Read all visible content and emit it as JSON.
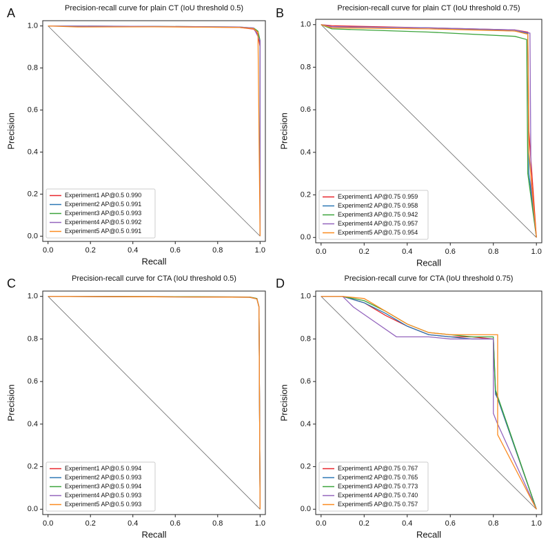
{
  "chart_data": [
    {
      "type": "line",
      "panel": "A",
      "title": "Precision-recall curve for plain CT (IoU threshold 0.5)",
      "x_label": "Recall",
      "y_label": "Precision",
      "xlim": [
        -0.025,
        1.025
      ],
      "ylim": [
        -0.025,
        1.025
      ],
      "xticks": [
        {
          "value": 0,
          "label": "0.0"
        },
        0.2,
        0.4,
        0.6,
        0.8,
        {
          "value": 1,
          "label": "1.0"
        }
      ],
      "yticks": [
        {
          "value": 0,
          "label": "0.0"
        },
        0.2,
        0.4,
        0.6,
        0.8,
        {
          "value": 1,
          "label": "1.0"
        }
      ],
      "legend": "lower left",
      "series": [
        {
          "name": "Experiment1 AP@0.5 0.990",
          "color": "#e8242a",
          "x": [
            0,
            0.5,
            0.9,
            0.97,
            0.99,
            1.0,
            1.0
          ],
          "values": [
            1,
            0.997,
            0.993,
            0.985,
            0.96,
            0.9,
            0
          ]
        },
        {
          "name": "Experiment2 AP@0.5 0.991",
          "color": "#2a77b4",
          "x": [
            0,
            0.5,
            0.9,
            0.97,
            0.99,
            1.0,
            1.0
          ],
          "values": [
            1,
            0.997,
            0.994,
            0.988,
            0.97,
            0.92,
            0
          ]
        },
        {
          "name": "Experiment3 AP@0.5 0.993",
          "color": "#3aa33a",
          "x": [
            0,
            0.5,
            0.9,
            0.97,
            0.99,
            1.0,
            1.0
          ],
          "values": [
            1,
            0.998,
            0.995,
            0.99,
            0.975,
            0.93,
            0
          ]
        },
        {
          "name": "Experiment4 AP@0.5 0.992",
          "color": "#9364bd",
          "x": [
            0,
            0.5,
            0.9,
            0.97,
            0.985,
            1.0,
            1.0
          ],
          "values": [
            1,
            0.998,
            0.995,
            0.99,
            0.96,
            0.93,
            0
          ]
        },
        {
          "name": "Experiment5 AP@0.5 0.991",
          "color": "#fb8a1e",
          "x": [
            0,
            0.14,
            0.5,
            0.9,
            0.97,
            0.99,
            1.0
          ],
          "values": [
            1,
            0.995,
            0.996,
            0.993,
            0.987,
            0.97,
            0
          ]
        }
      ]
    },
    {
      "type": "line",
      "panel": "B",
      "title": "Precision-recall curve for plain CT (IoU threshold 0.75)",
      "x_label": "Recall",
      "y_label": "Precision",
      "xlim": [
        -0.025,
        1.025
      ],
      "ylim": [
        -0.025,
        1.025
      ],
      "xticks": [
        {
          "value": 0,
          "label": "0.0"
        },
        0.2,
        0.4,
        0.6,
        0.8,
        {
          "value": 1,
          "label": "1.0"
        }
      ],
      "yticks": [
        {
          "value": 0,
          "label": "0.0"
        },
        0.2,
        0.4,
        0.6,
        0.8,
        {
          "value": 1,
          "label": "1.0"
        }
      ],
      "legend": "lower left",
      "series": [
        {
          "name": "Experiment1 AP@0.75 0.959",
          "color": "#e8242a",
          "x": [
            0,
            0.05,
            0.5,
            0.9,
            0.96,
            0.965,
            1.0
          ],
          "values": [
            1,
            0.995,
            0.985,
            0.975,
            0.965,
            0.5,
            0
          ]
        },
        {
          "name": "Experiment2 AP@0.75 0.958",
          "color": "#2a77b4",
          "x": [
            0,
            0.05,
            0.5,
            0.9,
            0.96,
            0.965,
            1.0
          ],
          "values": [
            1,
            0.99,
            0.985,
            0.97,
            0.96,
            0.3,
            0
          ]
        },
        {
          "name": "Experiment3 AP@0.75 0.942",
          "color": "#3aa33a",
          "x": [
            0,
            0.05,
            0.5,
            0.9,
            0.955,
            0.96,
            1.0
          ],
          "values": [
            1,
            0.98,
            0.965,
            0.945,
            0.93,
            0.3,
            0
          ]
        },
        {
          "name": "Experiment4 AP@0.75 0.957",
          "color": "#9364bd",
          "x": [
            0,
            0.05,
            0.5,
            0.9,
            0.97,
            0.975,
            1.0
          ],
          "values": [
            1,
            0.99,
            0.985,
            0.975,
            0.96,
            0.25,
            0
          ]
        },
        {
          "name": "Experiment5 AP@0.75 0.954",
          "color": "#fb8a1e",
          "x": [
            0,
            0.05,
            0.5,
            0.9,
            0.96,
            0.965,
            1.0
          ],
          "values": [
            1,
            0.985,
            0.98,
            0.97,
            0.955,
            0.4,
            0
          ]
        }
      ]
    },
    {
      "type": "line",
      "panel": "C",
      "title": "Precision-recall curve for CTA (IoU threshold 0.5)",
      "x_label": "Recall",
      "y_label": "Precision",
      "xlim": [
        -0.025,
        1.025
      ],
      "ylim": [
        -0.025,
        1.025
      ],
      "xticks": [
        {
          "value": 0,
          "label": "0.0"
        },
        0.2,
        0.4,
        0.6,
        0.8,
        {
          "value": 1,
          "label": "1.0"
        }
      ],
      "yticks": [
        {
          "value": 0,
          "label": "0.0"
        },
        0.2,
        0.4,
        0.6,
        0.8,
        {
          "value": 1,
          "label": "1.0"
        }
      ],
      "legend": "lower left",
      "series": [
        {
          "name": "Experiment1 AP@0.5 0.994",
          "color": "#e8242a",
          "x": [
            0,
            0.5,
            0.95,
            0.985,
            0.995,
            1.0
          ],
          "values": [
            1,
            0.999,
            0.997,
            0.99,
            0.95,
            0
          ]
        },
        {
          "name": "Experiment2 AP@0.5 0.993",
          "color": "#2a77b4",
          "x": [
            0,
            0.5,
            0.95,
            0.985,
            0.995,
            1.0
          ],
          "values": [
            1,
            0.998,
            0.996,
            0.988,
            0.95,
            0
          ]
        },
        {
          "name": "Experiment3 AP@0.5 0.994",
          "color": "#3aa33a",
          "x": [
            0,
            0.5,
            0.95,
            0.985,
            0.995,
            1.0
          ],
          "values": [
            1,
            0.999,
            0.997,
            0.99,
            0.95,
            0
          ]
        },
        {
          "name": "Experiment4 AP@0.5 0.993",
          "color": "#9364bd",
          "x": [
            0,
            0.5,
            0.95,
            0.985,
            0.995,
            1.0
          ],
          "values": [
            1,
            0.998,
            0.996,
            0.988,
            0.95,
            0
          ]
        },
        {
          "name": "Experiment5 AP@0.5 0.993",
          "color": "#fb8a1e",
          "x": [
            0,
            0.5,
            0.95,
            0.985,
            0.995,
            1.0
          ],
          "values": [
            1,
            0.998,
            0.996,
            0.988,
            0.95,
            0
          ]
        }
      ]
    },
    {
      "type": "line",
      "panel": "D",
      "title": "Precision-recall curve for CTA (IoU threshold 0.75)",
      "x_label": "Recall",
      "y_label": "Precision",
      "xlim": [
        -0.025,
        1.025
      ],
      "ylim": [
        -0.025,
        1.025
      ],
      "xticks": [
        {
          "value": 0,
          "label": "0.0"
        },
        0.2,
        0.4,
        0.6,
        0.8,
        {
          "value": 1,
          "label": "1.0"
        }
      ],
      "yticks": [
        {
          "value": 0,
          "label": "0.0"
        },
        0.2,
        0.4,
        0.6,
        0.8,
        {
          "value": 1,
          "label": "1.0"
        }
      ],
      "legend": "lower left",
      "series": [
        {
          "name": "Experiment1 AP@0.75 0.767",
          "color": "#e8242a",
          "x": [
            0,
            0.1,
            0.2,
            0.3,
            0.4,
            0.5,
            0.6,
            0.7,
            0.8,
            0.81,
            0.82,
            1.0
          ],
          "values": [
            1,
            1,
            0.97,
            0.91,
            0.86,
            0.82,
            0.81,
            0.81,
            0.8,
            0.55,
            0.52,
            0
          ]
        },
        {
          "name": "Experiment2 AP@0.75 0.765",
          "color": "#2a77b4",
          "x": [
            0,
            0.1,
            0.2,
            0.3,
            0.4,
            0.5,
            0.6,
            0.7,
            0.8,
            0.81,
            0.82,
            1.0
          ],
          "values": [
            1,
            1,
            0.97,
            0.92,
            0.86,
            0.82,
            0.81,
            0.8,
            0.8,
            0.54,
            0.52,
            0
          ]
        },
        {
          "name": "Experiment3 AP@0.75 0.773",
          "color": "#3aa33a",
          "x": [
            0,
            0.1,
            0.2,
            0.3,
            0.4,
            0.5,
            0.6,
            0.7,
            0.8,
            0.81,
            0.82,
            1.0
          ],
          "values": [
            1,
            1,
            0.98,
            0.93,
            0.87,
            0.83,
            0.82,
            0.81,
            0.81,
            0.56,
            0.53,
            0
          ]
        },
        {
          "name": "Experiment4 AP@0.75 0.740",
          "color": "#9364bd",
          "x": [
            0,
            0.1,
            0.15,
            0.25,
            0.35,
            0.5,
            0.6,
            0.7,
            0.8,
            0.8,
            0.82,
            1.0
          ],
          "values": [
            1,
            1,
            0.95,
            0.88,
            0.81,
            0.81,
            0.8,
            0.8,
            0.8,
            0.45,
            0.4,
            0
          ]
        },
        {
          "name": "Experiment5 AP@0.75 0.757",
          "color": "#fb8a1e",
          "x": [
            0,
            0.1,
            0.2,
            0.3,
            0.4,
            0.5,
            0.6,
            0.7,
            0.8,
            0.82,
            0.82,
            1.0
          ],
          "values": [
            1,
            1,
            0.99,
            0.93,
            0.87,
            0.83,
            0.82,
            0.82,
            0.82,
            0.82,
            0.35,
            0
          ]
        }
      ]
    }
  ]
}
